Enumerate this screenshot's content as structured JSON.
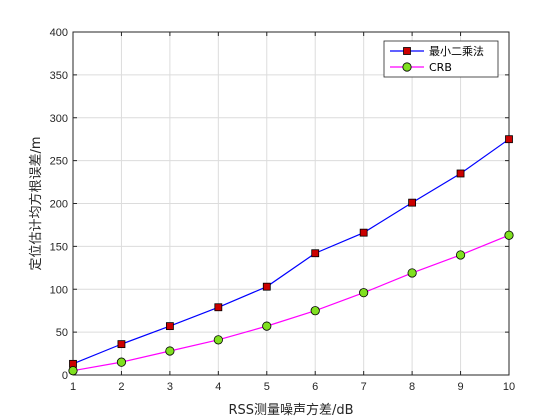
{
  "chart_data": {
    "type": "line",
    "title": "",
    "xlabel": "RSS测量噪声方差/dB",
    "ylabel": "定位估计均方根误差/m",
    "x": [
      1,
      2,
      3,
      4,
      5,
      6,
      7,
      8,
      9,
      10
    ],
    "xlim": [
      1,
      10
    ],
    "ylim": [
      0,
      400
    ],
    "xticks": [
      1,
      2,
      3,
      4,
      5,
      6,
      7,
      8,
      9,
      10
    ],
    "yticks": [
      0,
      50,
      100,
      150,
      200,
      250,
      300,
      350,
      400
    ],
    "grid": true,
    "legend_position": "top-right",
    "series": [
      {
        "name": "最小二乘法",
        "values": [
          13,
          36,
          57,
          79,
          103,
          142,
          166,
          201,
          235,
          275
        ],
        "color": "#0000ff",
        "marker": "square",
        "marker_fill": "#cc0000"
      },
      {
        "name": "CRB",
        "values": [
          5,
          15,
          28,
          41,
          57,
          75,
          96,
          119,
          140,
          163
        ],
        "color": "#ff00ff",
        "marker": "circle",
        "marker_fill": "#80e020"
      }
    ]
  }
}
